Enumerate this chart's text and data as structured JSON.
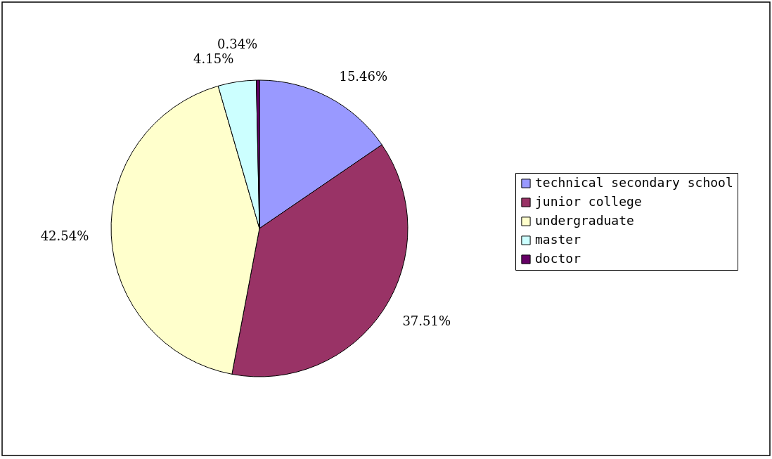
{
  "chart_data": {
    "type": "pie",
    "categories": [
      "technical secondary school",
      "junior college",
      "undergraduate",
      "master",
      "doctor"
    ],
    "values": [
      15.46,
      37.51,
      42.54,
      4.15,
      0.34
    ],
    "colors": [
      "#9999ff",
      "#993366",
      "#ffffcc",
      "#ccffff",
      "#660066"
    ],
    "value_labels": [
      "15.46%",
      "37.51%",
      "42.54%",
      "4.15%",
      "0.34%"
    ],
    "legend": "right"
  }
}
